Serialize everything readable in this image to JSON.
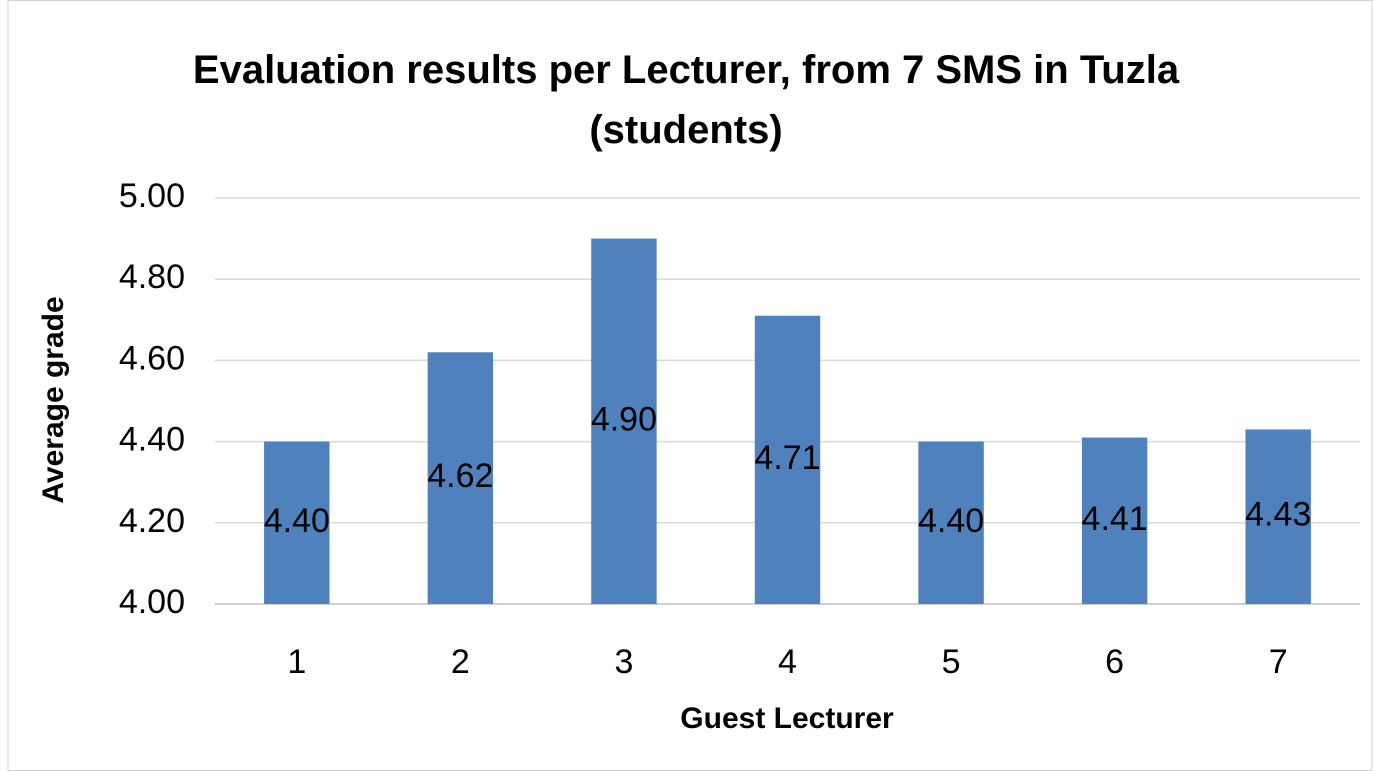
{
  "chart_data": {
    "type": "bar",
    "title": "Evaluation results per Lecturer, from 7 SMS in Tuzla (students)",
    "x_label": "Guest Lecturer",
    "y_label": "Average grade",
    "categories": [
      "1",
      "2",
      "3",
      "4",
      "5",
      "6",
      "7"
    ],
    "values": [
      4.4,
      4.62,
      4.9,
      4.71,
      4.4,
      4.41,
      4.43
    ],
    "value_labels": [
      "4.40",
      "4.62",
      "4.90",
      "4.71",
      "4.40",
      "4.41",
      "4.43"
    ],
    "color": "#4f81bd",
    "ylim": [
      4,
      5
    ],
    "yticks": [
      {
        "value": 4,
        "label": "4.00"
      },
      {
        "value": 4.2,
        "label": "4.20"
      },
      {
        "value": 4.4,
        "label": "4.40"
      },
      {
        "value": 4.6,
        "label": "4.60"
      },
      {
        "value": 4.8,
        "label": "4.80"
      },
      {
        "value": 5,
        "label": "5.00"
      }
    ],
    "grid": true
  }
}
